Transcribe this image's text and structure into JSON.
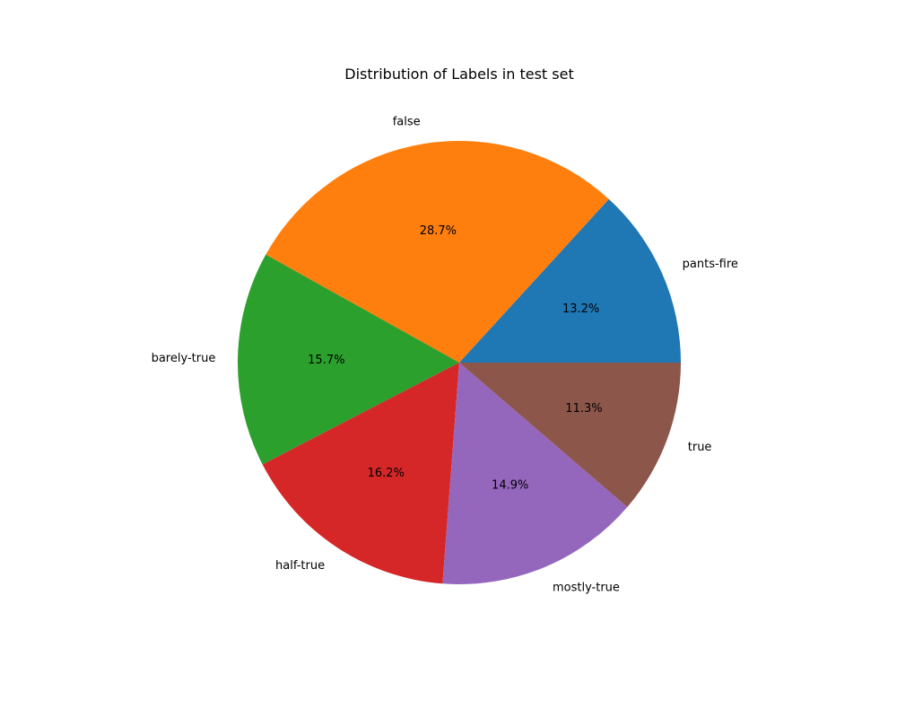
{
  "chart_data": {
    "type": "pie",
    "title": "Distribution of Labels in test set",
    "start_angle_deg": 0,
    "direction": "counterclockwise",
    "slices": [
      {
        "label": "pants-fire",
        "value": 13.2,
        "pct_label": "13.2%",
        "color": "#1f77b4"
      },
      {
        "label": "false",
        "value": 28.7,
        "pct_label": "28.7%",
        "color": "#ff7f0e"
      },
      {
        "label": "barely-true",
        "value": 15.7,
        "pct_label": "15.7%",
        "color": "#2ca02c"
      },
      {
        "label": "half-true",
        "value": 16.2,
        "pct_label": "16.2%",
        "color": "#d62728"
      },
      {
        "label": "mostly-true",
        "value": 14.9,
        "pct_label": "14.9%",
        "color": "#9467bd"
      },
      {
        "label": "true",
        "value": 11.3,
        "pct_label": "11.3%",
        "color": "#8c564b"
      }
    ]
  }
}
